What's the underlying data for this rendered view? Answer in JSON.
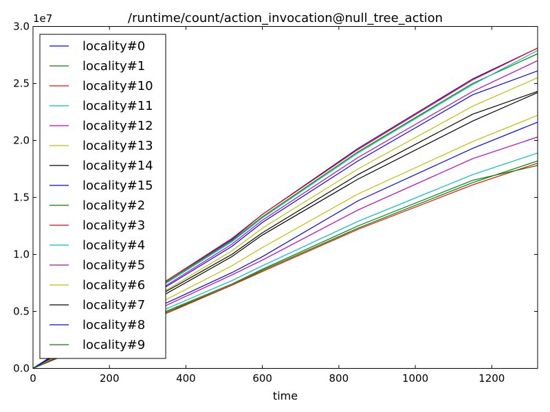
{
  "chart_data": {
    "type": "line",
    "title": "/runtime/count/action_invocation@null_tree_action",
    "xlabel": "time",
    "ylabel": "",
    "xlim": [
      0,
      1320
    ],
    "ylim": [
      0,
      30000000
    ],
    "x_ticks": [
      0,
      200,
      400,
      600,
      800,
      1000,
      1200
    ],
    "x_tick_labels": [
      "0",
      "200",
      "400",
      "600",
      "800",
      "1000",
      "1200"
    ],
    "y_ticks": [
      0,
      5000000,
      10000000,
      15000000,
      20000000,
      25000000,
      30000000
    ],
    "y_tick_labels": [
      "0.0",
      "0.5",
      "1.0",
      "1.5",
      "2.0",
      "2.5",
      "3.0"
    ],
    "y_offset_label": "1e7",
    "grid": false,
    "legend_position": "top-left",
    "x": [
      0,
      340,
      520,
      600,
      850,
      1150,
      1320
    ],
    "series": [
      {
        "name": "locality#0",
        "color": "#0000ff",
        "values": [
          0,
          7500000,
          11300000,
          13500000,
          19300000,
          25400000,
          28100000
        ]
      },
      {
        "name": "locality#1",
        "color": "#008000",
        "values": [
          0,
          7400000,
          11200000,
          13300000,
          19000000,
          25000000,
          27600000
        ]
      },
      {
        "name": "locality#10",
        "color": "#ff0000",
        "values": [
          0,
          7500000,
          11400000,
          13500000,
          19200000,
          25300000,
          28100000
        ]
      },
      {
        "name": "locality#11",
        "color": "#00bfbf",
        "values": [
          0,
          7300000,
          11100000,
          13200000,
          18900000,
          24900000,
          27900000
        ]
      },
      {
        "name": "locality#12",
        "color": "#bf00bf",
        "values": [
          0,
          7100000,
          10900000,
          13000000,
          18500000,
          24300000,
          27000000
        ]
      },
      {
        "name": "locality#13",
        "color": "#bfbf00",
        "values": [
          0,
          6700000,
          10300000,
          12300000,
          17500000,
          23000000,
          25500000
        ]
      },
      {
        "name": "locality#14",
        "color": "#000000",
        "values": [
          0,
          6400000,
          9800000,
          11700000,
          16600000,
          21700000,
          24200000
        ]
      },
      {
        "name": "locality#15",
        "color": "#0000ff",
        "values": [
          0,
          5600000,
          8400000,
          9800000,
          14700000,
          19300000,
          21600000
        ]
      },
      {
        "name": "locality#2",
        "color": "#008000",
        "values": [
          0,
          4800000,
          7300000,
          8600000,
          12300000,
          16300000,
          18200000
        ]
      },
      {
        "name": "locality#3",
        "color": "#ff0000",
        "values": [
          0,
          4700000,
          7300000,
          8500000,
          12200000,
          16100000,
          18000000
        ]
      },
      {
        "name": "locality#4",
        "color": "#00bfbf",
        "values": [
          0,
          5100000,
          7700000,
          9000000,
          12900000,
          17000000,
          18900000
        ]
      },
      {
        "name": "locality#5",
        "color": "#bf00bf",
        "values": [
          0,
          5400000,
          8200000,
          9500000,
          13900000,
          18400000,
          20300000
        ]
      },
      {
        "name": "locality#6",
        "color": "#bfbf00",
        "values": [
          0,
          5900000,
          9000000,
          10600000,
          15300000,
          19900000,
          22200000
        ]
      },
      {
        "name": "locality#7",
        "color": "#000000",
        "values": [
          0,
          6600000,
          10000000,
          11900000,
          17000000,
          22300000,
          24300000
        ]
      },
      {
        "name": "locality#8",
        "color": "#0000ff",
        "values": [
          0,
          7000000,
          10700000,
          12800000,
          18200000,
          24000000,
          26100000
        ]
      },
      {
        "name": "locality#9",
        "color": "#008000",
        "values": [
          0,
          4900000,
          7400000,
          8700000,
          12500000,
          16500000,
          17800000
        ]
      }
    ]
  }
}
